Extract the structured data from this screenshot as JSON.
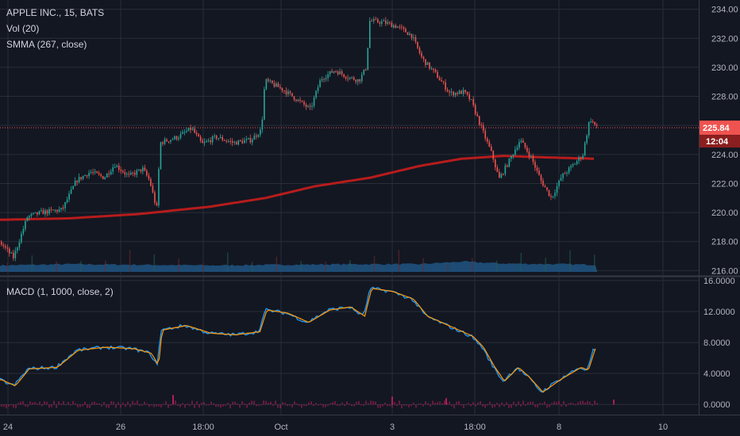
{
  "header": {
    "symbol": "APPLE INC., 15, BATS",
    "volume_label": "Vol (20)",
    "smma_label": "SMMA (267, close)"
  },
  "macd_header": {
    "label": "MACD (1, 1000, close, 2)"
  },
  "colors": {
    "background": "#131722",
    "grid": "#2a2e39",
    "up": "#26a69a",
    "down": "#ef5350",
    "smma": "#b71c1c",
    "volume": "#1e4e79",
    "macd": "#2196f3",
    "signal": "#ff9800",
    "hist": "#e91e63",
    "price_line": "#ef5350",
    "axis_text": "#b2b5be"
  },
  "price_badge": {
    "price": "225.84",
    "countdown": "12:04"
  },
  "chart_data": [
    {
      "type": "candlestick",
      "title": "APPLE INC., 15, BATS",
      "y_axis_ticks": [
        "234.00",
        "232.00",
        "230.00",
        "228.00",
        "226.00",
        "224.00",
        "222.00",
        "220.00",
        "218.00",
        "216.00"
      ],
      "ylim": [
        215.8,
        234.2
      ],
      "x_axis_ticks": [
        "24",
        "26",
        "18:00",
        "Oct",
        "3",
        "18:00",
        "8",
        "10"
      ],
      "last_price": 225.84,
      "grid": true,
      "price_path": [
        {
          "t": 0.0,
          "p": 218.0
        },
        {
          "t": 0.02,
          "p": 216.9
        },
        {
          "t": 0.04,
          "p": 219.7
        },
        {
          "t": 0.06,
          "p": 220.0
        },
        {
          "t": 0.09,
          "p": 220.2
        },
        {
          "t": 0.11,
          "p": 222.2
        },
        {
          "t": 0.13,
          "p": 222.8
        },
        {
          "t": 0.15,
          "p": 222.4
        },
        {
          "t": 0.165,
          "p": 223.3
        },
        {
          "t": 0.185,
          "p": 222.5
        },
        {
          "t": 0.205,
          "p": 223.0
        },
        {
          "t": 0.215,
          "p": 222.2
        },
        {
          "t": 0.225,
          "p": 220.2
        },
        {
          "t": 0.23,
          "p": 224.8
        },
        {
          "t": 0.255,
          "p": 225.2
        },
        {
          "t": 0.275,
          "p": 225.8
        },
        {
          "t": 0.29,
          "p": 224.7
        },
        {
          "t": 0.31,
          "p": 225.2
        },
        {
          "t": 0.335,
          "p": 224.8
        },
        {
          "t": 0.36,
          "p": 225.0
        },
        {
          "t": 0.375,
          "p": 225.7
        },
        {
          "t": 0.38,
          "p": 229.1
        },
        {
          "t": 0.405,
          "p": 228.5
        },
        {
          "t": 0.425,
          "p": 227.8
        },
        {
          "t": 0.445,
          "p": 227.1
        },
        {
          "t": 0.46,
          "p": 229.2
        },
        {
          "t": 0.48,
          "p": 229.8
        },
        {
          "t": 0.5,
          "p": 229.3
        },
        {
          "t": 0.515,
          "p": 229.1
        },
        {
          "t": 0.525,
          "p": 230.0
        },
        {
          "t": 0.53,
          "p": 233.2
        },
        {
          "t": 0.55,
          "p": 233.1
        },
        {
          "t": 0.57,
          "p": 232.8
        },
        {
          "t": 0.59,
          "p": 232.2
        },
        {
          "t": 0.605,
          "p": 230.6
        },
        {
          "t": 0.625,
          "p": 229.5
        },
        {
          "t": 0.645,
          "p": 228.2
        },
        {
          "t": 0.665,
          "p": 228.3
        },
        {
          "t": 0.675,
          "p": 227.7
        },
        {
          "t": 0.69,
          "p": 225.8
        },
        {
          "t": 0.705,
          "p": 224.0
        },
        {
          "t": 0.715,
          "p": 222.3
        },
        {
          "t": 0.73,
          "p": 223.6
        },
        {
          "t": 0.745,
          "p": 225.0
        },
        {
          "t": 0.76,
          "p": 223.9
        },
        {
          "t": 0.775,
          "p": 222.2
        },
        {
          "t": 0.79,
          "p": 221.0
        },
        {
          "t": 0.805,
          "p": 222.5
        },
        {
          "t": 0.82,
          "p": 223.2
        },
        {
          "t": 0.835,
          "p": 224.0
        },
        {
          "t": 0.845,
          "p": 226.5
        },
        {
          "t": 0.855,
          "p": 225.84
        }
      ],
      "smma_path": [
        {
          "t": 0.0,
          "p": 219.5
        },
        {
          "t": 0.1,
          "p": 219.6
        },
        {
          "t": 0.2,
          "p": 219.9
        },
        {
          "t": 0.3,
          "p": 220.4
        },
        {
          "t": 0.38,
          "p": 221.0
        },
        {
          "t": 0.45,
          "p": 221.8
        },
        {
          "t": 0.53,
          "p": 222.4
        },
        {
          "t": 0.6,
          "p": 223.2
        },
        {
          "t": 0.66,
          "p": 223.7
        },
        {
          "t": 0.72,
          "p": 223.9
        },
        {
          "t": 0.78,
          "p": 223.8
        },
        {
          "t": 0.855,
          "p": 223.7
        }
      ],
      "volume_level": [
        {
          "t": 0.0,
          "v": 0.45
        },
        {
          "t": 0.1,
          "v": 0.55
        },
        {
          "t": 0.2,
          "v": 0.5
        },
        {
          "t": 0.3,
          "v": 0.45
        },
        {
          "t": 0.4,
          "v": 0.5
        },
        {
          "t": 0.5,
          "v": 0.55
        },
        {
          "t": 0.6,
          "v": 0.55
        },
        {
          "t": 0.66,
          "v": 0.75
        },
        {
          "t": 0.72,
          "v": 0.6
        },
        {
          "t": 0.8,
          "v": 0.55
        },
        {
          "t": 0.855,
          "v": 0.5
        }
      ]
    },
    {
      "type": "line",
      "title": "MACD (1, 1000, close, 2)",
      "y_axis_ticks": [
        "16.0000",
        "12.0000",
        "8.0000",
        "4.0000",
        "0.0000"
      ],
      "ylim": [
        -1.0,
        16.2
      ],
      "macd_path": [
        {
          "t": 0.0,
          "v": 3.2
        },
        {
          "t": 0.02,
          "v": 2.4
        },
        {
          "t": 0.04,
          "v": 4.6
        },
        {
          "t": 0.08,
          "v": 4.8
        },
        {
          "t": 0.11,
          "v": 7.0
        },
        {
          "t": 0.15,
          "v": 7.4
        },
        {
          "t": 0.19,
          "v": 7.2
        },
        {
          "t": 0.215,
          "v": 6.6
        },
        {
          "t": 0.225,
          "v": 5.0
        },
        {
          "t": 0.23,
          "v": 9.6
        },
        {
          "t": 0.265,
          "v": 10.2
        },
        {
          "t": 0.3,
          "v": 9.2
        },
        {
          "t": 0.335,
          "v": 9.0
        },
        {
          "t": 0.37,
          "v": 9.4
        },
        {
          "t": 0.38,
          "v": 12.2
        },
        {
          "t": 0.41,
          "v": 11.8
        },
        {
          "t": 0.44,
          "v": 10.6
        },
        {
          "t": 0.47,
          "v": 12.2
        },
        {
          "t": 0.5,
          "v": 12.6
        },
        {
          "t": 0.52,
          "v": 11.4
        },
        {
          "t": 0.53,
          "v": 15.0
        },
        {
          "t": 0.56,
          "v": 14.6
        },
        {
          "t": 0.59,
          "v": 13.6
        },
        {
          "t": 0.61,
          "v": 11.4
        },
        {
          "t": 0.65,
          "v": 9.8
        },
        {
          "t": 0.675,
          "v": 8.8
        },
        {
          "t": 0.69,
          "v": 7.4
        },
        {
          "t": 0.705,
          "v": 5.0
        },
        {
          "t": 0.72,
          "v": 3.0
        },
        {
          "t": 0.74,
          "v": 4.8
        },
        {
          "t": 0.755,
          "v": 3.6
        },
        {
          "t": 0.775,
          "v": 1.6
        },
        {
          "t": 0.8,
          "v": 3.2
        },
        {
          "t": 0.83,
          "v": 4.8
        },
        {
          "t": 0.84,
          "v": 4.4
        },
        {
          "t": 0.85,
          "v": 7.2
        },
        {
          "t": 0.855,
          "v": 6.6
        }
      ]
    }
  ]
}
